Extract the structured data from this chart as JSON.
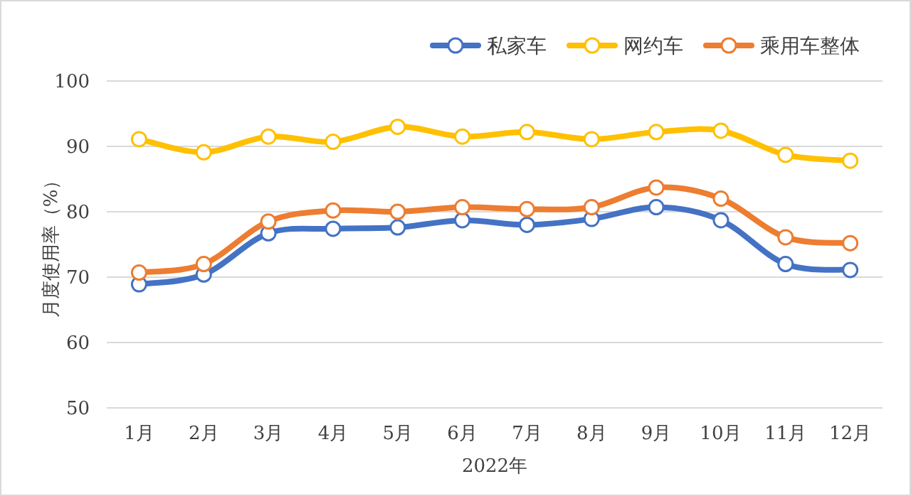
{
  "chart_data": {
    "type": "line",
    "xlabel": "2022年",
    "ylabel": "月度使用率（%）",
    "categories": [
      "1月",
      "2月",
      "3月",
      "4月",
      "5月",
      "6月",
      "7月",
      "8月",
      "9月",
      "10月",
      "11月",
      "12月"
    ],
    "series": [
      {
        "name": "私家车",
        "color": "#4472c4",
        "values": [
          68.9,
          70.4,
          76.7,
          77.4,
          77.6,
          78.7,
          78.0,
          78.9,
          80.7,
          78.7,
          72.0,
          71.1
        ]
      },
      {
        "name": "网约车",
        "color": "#ffc000",
        "values": [
          91.1,
          89.1,
          91.5,
          90.7,
          93.0,
          91.5,
          92.2,
          91.1,
          92.2,
          92.4,
          88.7,
          87.8
        ]
      },
      {
        "name": "乘用车整体",
        "color": "#ed7d31",
        "values": [
          70.7,
          72.0,
          78.5,
          80.2,
          80.0,
          80.7,
          80.4,
          80.7,
          83.7,
          82.0,
          76.1,
          75.2
        ]
      }
    ],
    "ylim": [
      50,
      100
    ],
    "yticks": [
      50,
      60,
      70,
      80,
      90,
      100
    ],
    "grid": "y",
    "legend": "top right",
    "marker": "circle",
    "line_style": "solid"
  }
}
